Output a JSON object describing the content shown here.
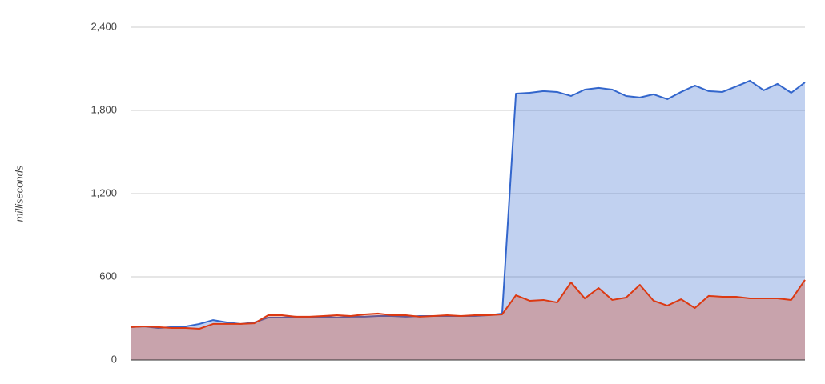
{
  "chart_data": {
    "type": "area",
    "y_label": "milliseconds",
    "ylim": [
      0,
      2400
    ],
    "yticks": [
      0,
      600,
      {
        "value": 1200,
        "label": "1,200"
      },
      {
        "value": 1800,
        "label": "1,800"
      },
      {
        "value": 2400,
        "label": "2,400"
      }
    ],
    "grid": true,
    "series": [
      {
        "color": "#3366cc",
        "values": [
          237,
          242,
          231,
          237,
          242,
          260,
          288,
          271,
          260,
          271,
          306,
          306,
          312,
          306,
          312,
          306,
          312,
          312,
          317,
          317,
          312,
          317,
          317,
          317,
          317,
          317,
          323,
          335,
          1921,
          1927,
          1939,
          1933,
          1904,
          1950,
          1962,
          1950,
          1904,
          1893,
          1916,
          1881,
          1933,
          1979,
          1939,
          1933,
          1973,
          2014,
          1945,
          1991,
          1927,
          2002
        ]
      },
      {
        "color": "#dc3912",
        "values": [
          237,
          242,
          237,
          231,
          231,
          225,
          260,
          260,
          260,
          265,
          323,
          323,
          312,
          312,
          317,
          323,
          317,
          329,
          335,
          323,
          323,
          312,
          317,
          323,
          317,
          323,
          323,
          329,
          467,
          427,
          433,
          415,
          560,
          444,
          519,
          433,
          450,
          542,
          427,
          392,
          438,
          375,
          462,
          456,
          456,
          444,
          444,
          444,
          433,
          577
        ]
      }
    ]
  }
}
